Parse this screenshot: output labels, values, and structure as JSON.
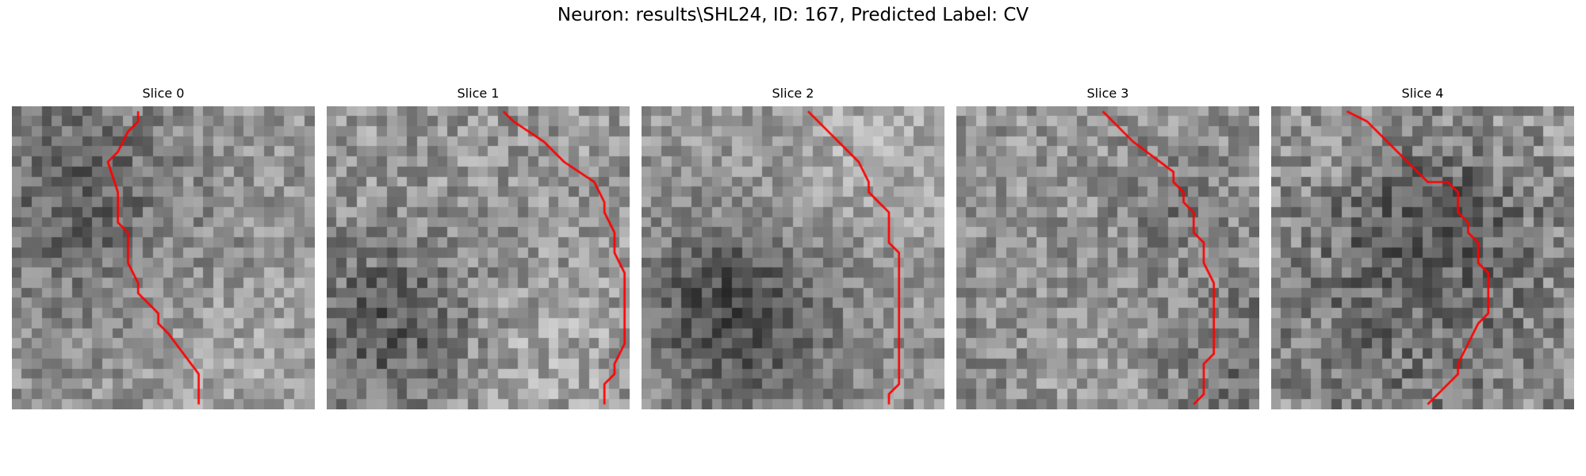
{
  "figure": {
    "title": "Neuron: results\\SHL24, ID: 167, Predicted Label: CV",
    "line_color": "#ff0000",
    "grid_size": 30
  },
  "panels": [
    {
      "title": "Slice 0",
      "contrast": 0.9,
      "seed": 11,
      "trace": [
        [
          12.5,
          0.5
        ],
        [
          12.5,
          1.5
        ],
        [
          11.5,
          2.5
        ],
        [
          10.5,
          4.5
        ],
        [
          9.5,
          5.5
        ],
        [
          10.5,
          8.5
        ],
        [
          10.5,
          11.5
        ],
        [
          11.5,
          12.5
        ],
        [
          11.5,
          15.5
        ],
        [
          12.5,
          17.5
        ],
        [
          12.5,
          18.5
        ],
        [
          14.5,
          20.5
        ],
        [
          14.5,
          21.5
        ],
        [
          15.5,
          22.5
        ],
        [
          18.5,
          26.5
        ],
        [
          18.5,
          29.5
        ]
      ]
    },
    {
      "title": "Slice 1",
      "contrast": 1.0,
      "seed": 23,
      "trace": [
        [
          17.5,
          0.5
        ],
        [
          18.5,
          1.5
        ],
        [
          21.5,
          3.5
        ],
        [
          23.5,
          5.5
        ],
        [
          26.5,
          7.5
        ],
        [
          27.5,
          9.5
        ],
        [
          27.5,
          10.5
        ],
        [
          28.5,
          12.5
        ],
        [
          28.5,
          14.5
        ],
        [
          29.5,
          16.5
        ],
        [
          29.5,
          23.5
        ],
        [
          28.5,
          25.5
        ],
        [
          28.5,
          26.5
        ],
        [
          27.5,
          27.5
        ],
        [
          27.5,
          29.5
        ]
      ]
    },
    {
      "title": "Slice 2",
      "contrast": 0.85,
      "seed": 37,
      "trace": [
        [
          16.5,
          0.5
        ],
        [
          18.5,
          2.5
        ],
        [
          21.5,
          5.5
        ],
        [
          22.5,
          7.5
        ],
        [
          22.5,
          8.5
        ],
        [
          23.5,
          9.5
        ],
        [
          24.5,
          10.5
        ],
        [
          24.5,
          13.5
        ],
        [
          25.5,
          14.5
        ],
        [
          25.5,
          27.5
        ],
        [
          24.5,
          28.5
        ],
        [
          24.5,
          29.5
        ]
      ]
    },
    {
      "title": "Slice 3",
      "contrast": 0.95,
      "seed": 41,
      "trace": [
        [
          14.5,
          0.5
        ],
        [
          15.5,
          1.5
        ],
        [
          17.5,
          3.5
        ],
        [
          21.5,
          6.5
        ],
        [
          21.5,
          7.5
        ],
        [
          22.5,
          8.5
        ],
        [
          22.5,
          9.5
        ],
        [
          23.5,
          10.5
        ],
        [
          23.5,
          12.5
        ],
        [
          24.5,
          13.5
        ],
        [
          24.5,
          15.5
        ],
        [
          25.5,
          17.5
        ],
        [
          25.5,
          24.5
        ],
        [
          24.5,
          25.5
        ],
        [
          24.5,
          28.5
        ],
        [
          23.5,
          29.5
        ]
      ]
    },
    {
      "title": "Slice 4",
      "contrast": 1.1,
      "seed": 53,
      "trace": [
        [
          7.5,
          0.5
        ],
        [
          9.5,
          1.5
        ],
        [
          15.5,
          7.5
        ],
        [
          17.5,
          7.5
        ],
        [
          18.5,
          8.5
        ],
        [
          18.5,
          10.5
        ],
        [
          19.5,
          11.5
        ],
        [
          19.5,
          12.5
        ],
        [
          20.5,
          13.5
        ],
        [
          20.5,
          15.5
        ],
        [
          21.5,
          16.5
        ],
        [
          21.5,
          20.5
        ],
        [
          20.5,
          21.5
        ],
        [
          19.5,
          23.5
        ],
        [
          18.5,
          25.5
        ],
        [
          18.5,
          26.5
        ],
        [
          15.5,
          29.5
        ]
      ]
    }
  ]
}
